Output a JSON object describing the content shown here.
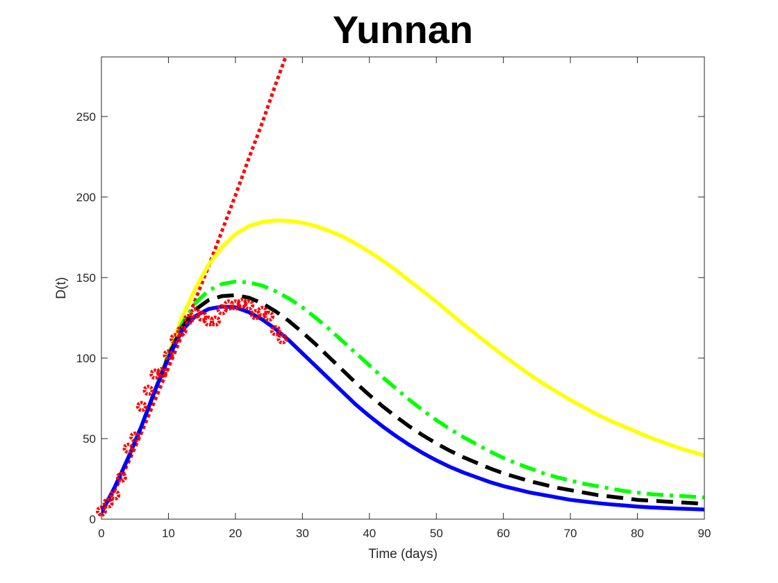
{
  "chart_data": {
    "type": "line",
    "title": "Yunnan",
    "xlabel": "Time (days)",
    "ylabel": "D(t)",
    "xlim": [
      0,
      90
    ],
    "ylim": [
      0,
      287
    ],
    "xticks": [
      0,
      10,
      20,
      30,
      40,
      50,
      60,
      70,
      80,
      90
    ],
    "yticks": [
      0,
      50,
      100,
      150,
      200,
      250
    ],
    "grid": false,
    "legend": "none",
    "series": [
      {
        "style": "dotted",
        "color": "#ff0000",
        "x": [
          0,
          2,
          4,
          6,
          8,
          10,
          12,
          14,
          16,
          18,
          20,
          22,
          24,
          26,
          27.5
        ],
        "y": [
          4,
          18,
          35,
          54,
          74,
          94,
          114,
          136,
          157,
          179,
          201,
          224,
          246,
          270,
          287
        ]
      },
      {
        "style": "solid",
        "color": "#ffff00",
        "x": [
          0,
          2,
          4,
          6,
          8,
          10,
          12,
          14,
          16,
          18,
          20,
          22,
          24,
          26,
          28,
          30,
          32,
          34,
          36,
          38,
          40,
          42,
          44,
          46,
          48,
          50,
          52,
          54,
          56,
          58,
          60,
          62,
          64,
          66,
          68,
          70,
          72,
          74,
          76,
          78,
          80,
          82,
          84,
          86,
          88,
          90
        ],
        "y": [
          4,
          20,
          38,
          58,
          80,
          102,
          125,
          143,
          158,
          169,
          177,
          182,
          184.5,
          185.5,
          185.2,
          184,
          182,
          179,
          175.5,
          171,
          166,
          160.5,
          154.5,
          148,
          141.5,
          135,
          128,
          121,
          114.5,
          108,
          101.5,
          95.5,
          89.5,
          84,
          79,
          74,
          69.5,
          65,
          61,
          57.5,
          54,
          50.5,
          47.5,
          44.5,
          42,
          39.5
        ]
      },
      {
        "style": "dashdot",
        "color": "#00ff00",
        "x": [
          0,
          2,
          4,
          6,
          8,
          10,
          12,
          14,
          16,
          18,
          20,
          22,
          24,
          26,
          28,
          30,
          32,
          34,
          36,
          38,
          40,
          42,
          44,
          46,
          48,
          50,
          52,
          54,
          56,
          58,
          60,
          62,
          64,
          66,
          68,
          70,
          72,
          74,
          76,
          78,
          80,
          82,
          84,
          86,
          88,
          90
        ],
        "y": [
          4,
          20,
          38,
          58,
          80,
          102,
          121,
          134,
          142,
          146,
          147.5,
          147,
          145,
          141.5,
          137,
          131.5,
          125,
          118,
          110.5,
          103,
          95.5,
          88,
          81,
          74,
          67.5,
          61.5,
          56,
          51,
          46.5,
          42,
          38,
          34.5,
          31.5,
          28.5,
          26,
          24,
          22,
          20.5,
          19,
          17.5,
          16.5,
          15.5,
          15,
          14.5,
          14,
          13.5
        ]
      },
      {
        "style": "dashed",
        "color": "#000000",
        "x": [
          0,
          2,
          4,
          6,
          8,
          10,
          12,
          14,
          16,
          18,
          20,
          22,
          24,
          26,
          28,
          30,
          32,
          34,
          36,
          38,
          40,
          42,
          44,
          46,
          48,
          50,
          52,
          54,
          56,
          58,
          60,
          62,
          64,
          66,
          68,
          70,
          72,
          74,
          76,
          78,
          80,
          82,
          84,
          86,
          88,
          90
        ],
        "y": [
          4,
          20,
          38,
          58,
          80,
          101,
          119,
          130,
          136,
          138.5,
          139,
          137.5,
          134,
          129,
          123,
          116,
          108.5,
          100.5,
          92.5,
          84.5,
          77,
          70,
          63.5,
          57.5,
          52,
          47,
          42.5,
          38.5,
          35,
          31.5,
          28.5,
          26,
          23.5,
          21.5,
          19.5,
          18,
          16.5,
          15,
          14,
          13,
          12,
          11.5,
          11,
          10.5,
          10,
          9.5
        ]
      },
      {
        "style": "solid",
        "color": "#0000ff",
        "x": [
          0,
          2,
          4,
          6,
          8,
          10,
          12,
          14,
          16,
          18,
          20,
          22,
          24,
          26,
          28,
          30,
          32,
          34,
          36,
          38,
          40,
          42,
          44,
          46,
          48,
          50,
          52,
          54,
          56,
          58,
          60,
          62,
          64,
          66,
          68,
          70,
          72,
          74,
          76,
          78,
          80,
          82,
          84,
          86,
          88,
          90
        ],
        "y": [
          4,
          20,
          38,
          58,
          80,
          100,
          117,
          126,
          130.5,
          132,
          131.5,
          128.5,
          124,
          118,
          111,
          103,
          95,
          87,
          79,
          71,
          64,
          57.5,
          51.5,
          46,
          41,
          36.5,
          32.5,
          29,
          26,
          23,
          20.5,
          18.5,
          16.5,
          15,
          13.5,
          12,
          11,
          10,
          9.2,
          8.5,
          7.8,
          7.3,
          6.9,
          6.6,
          6.3,
          6
        ]
      },
      {
        "style": "markers",
        "color": "#ff0000",
        "x": [
          0,
          1,
          2,
          3,
          4,
          5,
          6,
          7,
          8,
          9,
          10,
          11,
          12,
          13,
          14,
          15,
          16,
          17,
          18,
          19,
          20,
          21,
          22,
          23,
          24,
          25,
          26,
          27
        ],
        "y": [
          5,
          10,
          15,
          26,
          44,
          51,
          70,
          80,
          90,
          91,
          102,
          112,
          117,
          124,
          128,
          126,
          123,
          123,
          130,
          133,
          133,
          134,
          133,
          127,
          129,
          126,
          117,
          112
        ]
      }
    ]
  }
}
